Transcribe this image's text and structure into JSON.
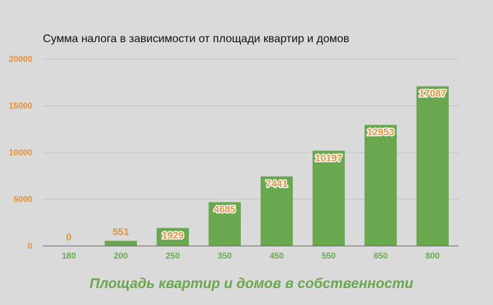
{
  "chart_data": {
    "type": "bar",
    "title": "Сумма налога в зависимости от площади квартир и домов",
    "xlabel": "Площадь квартир и домов в собственности",
    "ylabel": "",
    "categories": [
      "180",
      "200",
      "250",
      "350",
      "450",
      "550",
      "650",
      "800"
    ],
    "values": [
      0,
      551,
      1929,
      4685,
      7441,
      10197,
      12953,
      17087
    ],
    "data_labels": [
      "0",
      "551",
      "1929",
      "4685",
      "7441",
      "10197",
      "12953",
      "17087"
    ],
    "ylim": [
      0,
      20000
    ],
    "y_ticks": [
      0,
      5000,
      10000,
      15000,
      20000
    ],
    "y_tick_labels": [
      "0",
      "5000",
      "10000",
      "15000",
      "20000"
    ],
    "grid": true,
    "legend": "none",
    "colors": {
      "bar": "#6aa84f",
      "tick_label": "#e69138",
      "x_axis_label": "#6aa84f",
      "gridline": "#c4c4c4",
      "axis_line": "#666666",
      "background": "#dadada"
    }
  }
}
